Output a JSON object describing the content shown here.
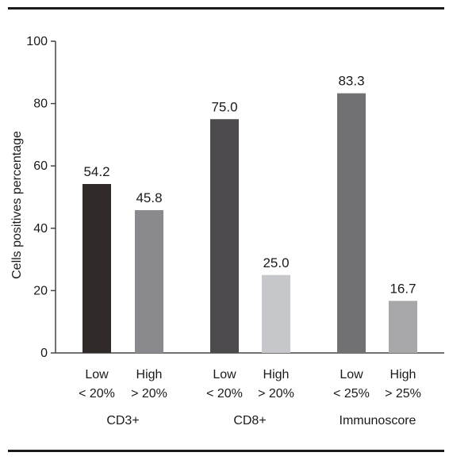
{
  "chart_data": {
    "type": "bar",
    "title": "",
    "ylabel": "Cells positives percentage",
    "xlabel": "",
    "ylim": [
      0,
      100
    ],
    "yticks": [
      0,
      20,
      40,
      60,
      80,
      100
    ],
    "grid": false,
    "groups": [
      {
        "name": "CD3+",
        "bars": [
          {
            "label_line1": "Low",
            "label_line2": "< 20%",
            "value": 54.2,
            "value_label": "54.2",
            "color": "#302a29"
          },
          {
            "label_line1": "High",
            "label_line2": "> 20%",
            "value": 45.8,
            "value_label": "45.8",
            "color": "#8a898d"
          }
        ]
      },
      {
        "name": "CD8+",
        "bars": [
          {
            "label_line1": "Low",
            "label_line2": "< 20%",
            "value": 75.0,
            "value_label": "75.0",
            "color": "#4c4a4d"
          },
          {
            "label_line1": "High",
            "label_line2": "> 20%",
            "value": 25.0,
            "value_label": "25.0",
            "color": "#c6c7ca"
          }
        ]
      },
      {
        "name": "Immunoscore",
        "bars": [
          {
            "label_line1": "Low",
            "label_line2": "< 25%",
            "value": 83.3,
            "value_label": "83.3",
            "color": "#717073"
          },
          {
            "label_line1": "High",
            "label_line2": "> 25%",
            "value": 16.7,
            "value_label": "16.7",
            "color": "#a8a8ab"
          }
        ]
      }
    ]
  }
}
